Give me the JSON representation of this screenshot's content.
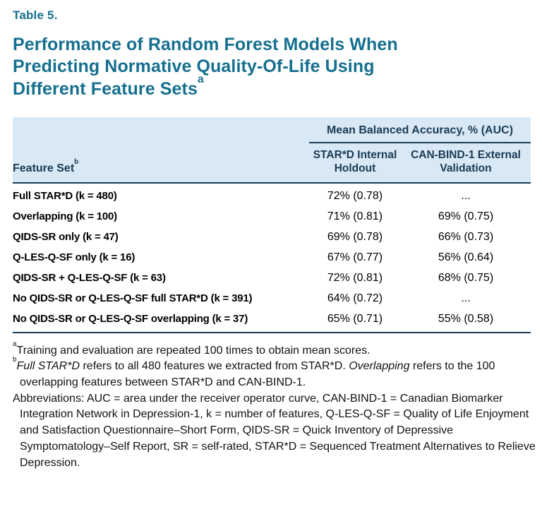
{
  "colors": {
    "title": "#156f8f",
    "header_background": "#d9e8f5",
    "header_text": "#1a3a55",
    "rule": "#1a3a55"
  },
  "table_label": "Table 5.",
  "title": {
    "text": "Performance of Random Forest Models When Predicting Normative Quality-Of-Life Using Different Feature Sets",
    "superscript": "a"
  },
  "table": {
    "group_header": "Mean Balanced Accuracy, % (AUC)",
    "feature_set_header": {
      "text": "Feature Set",
      "superscript": "b"
    },
    "col_headers": {
      "stard": "STAR*D Internal Holdout",
      "canbind": "CAN-BIND-1 External Validation"
    },
    "rows": [
      {
        "feature": "Full STAR*D (k = 480)",
        "stard": "72% (0.78)",
        "canbind": "..."
      },
      {
        "feature": "Overlapping (k = 100)",
        "stard": "71% (0.81)",
        "canbind": "69% (0.75)"
      },
      {
        "feature": "QIDS-SR only (k = 47)",
        "stard": "69% (0.78)",
        "canbind": "66% (0.73)"
      },
      {
        "feature": "Q-LES-Q-SF only (k = 16)",
        "stard": "67% (0.77)",
        "canbind": "56% (0.64)"
      },
      {
        "feature": "QIDS-SR + Q-LES-Q-SF (k = 63)",
        "stard": "72% (0.81)",
        "canbind": "68% (0.75)"
      },
      {
        "feature": "No QIDS-SR or Q-LES-Q-SF full STAR*D (k = 391)",
        "stard": "64% (0.72)",
        "canbind": "..."
      },
      {
        "feature": "No QIDS-SR or Q-LES-Q-SF overlapping (k = 37)",
        "stard": "65% (0.71)",
        "canbind": "55% (0.58)"
      }
    ]
  },
  "footnotes": {
    "a": {
      "marker": "a",
      "text": "Training and evaluation are repeated 100 times to obtain mean scores."
    },
    "b": {
      "marker": "b",
      "part1": "Full STAR*D",
      "part2": " refers to all 480 features we extracted from STAR*D. ",
      "part3": "Overlapping",
      "part4": " refers to the 100 overlapping features between STAR*D and CAN-BIND-1."
    },
    "abbreviations": "Abbreviations: AUC = area under the receiver operator curve, CAN-BIND-1 = Canadian Biomarker Integration Network in Depression-1, k = number of features, Q-LES-Q-SF = Quality of Life Enjoyment and Satisfaction Questionnaire–Short Form, QIDS-SR = Quick Inventory of Depressive Symptomatology–Self Report, SR = self-rated, STAR*D = Sequenced Treatment Alternatives to Relieve Depression."
  }
}
